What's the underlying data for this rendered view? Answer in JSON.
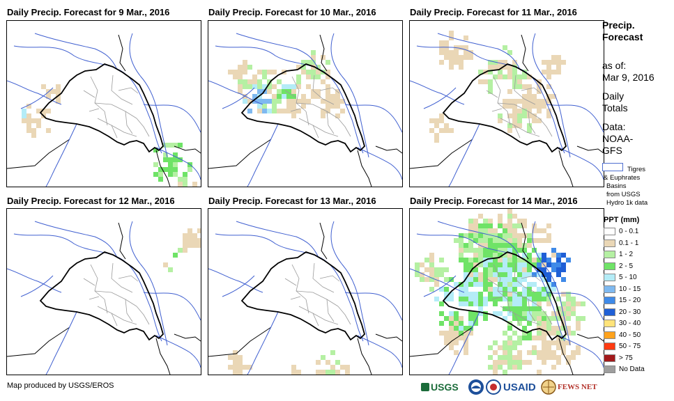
{
  "panels": [
    {
      "title": "Daily Precip. Forecast for 9 Mar., 2016"
    },
    {
      "title": "Daily Precip. Forecast for 10 Mar., 2016"
    },
    {
      "title": "Daily Precip. Forecast for 11 Mar., 2016"
    },
    {
      "title": "Daily Precip. Forecast for 12 Mar., 2016"
    },
    {
      "title": "Daily Precip. Forecast for 13 Mar., 2016"
    },
    {
      "title": "Daily Precip. Forecast for 14 Mar., 2016"
    }
  ],
  "sidebar": {
    "title_line1": "Precip.",
    "title_line2": "Forecast",
    "asof_label": "as of:",
    "asof_date": "Mar 9, 2016",
    "totals_line1": "Daily",
    "totals_line2": "Totals",
    "data_line1": "Data:",
    "data_line2": "NOAA-",
    "data_line3": "GFS",
    "basin_line1": "Tigres",
    "basin_line2": "& Euphrates",
    "basin_line3": "Basins",
    "basin_line4": "from USGS",
    "basin_line5": "Hydro 1k data"
  },
  "legend": {
    "title": "PPT (mm)",
    "items": [
      {
        "label": "0 - 0.1",
        "color": "#ffffff"
      },
      {
        "label": "0.1 - 1",
        "color": "#ead7b6"
      },
      {
        "label": "1 - 2",
        "color": "#b5f0a3"
      },
      {
        "label": "2 - 5",
        "color": "#6fe367"
      },
      {
        "label": "5 - 10",
        "color": "#b4ecf7"
      },
      {
        "label": "10 - 15",
        "color": "#7fb9f0"
      },
      {
        "label": "15 - 20",
        "color": "#3f8ae8"
      },
      {
        "label": "20 - 30",
        "color": "#1f5fd6"
      },
      {
        "label": "30 - 40",
        "color": "#ffe37a"
      },
      {
        "label": "40 - 50",
        "color": "#ffa21c"
      },
      {
        "label": "50 - 75",
        "color": "#ff3b12"
      },
      {
        "label": "> 75",
        "color": "#a2191b"
      },
      {
        "label": "No Data",
        "color": "#9e9e9e"
      }
    ]
  },
  "footer": {
    "credit": "Map produced by USGS/EROS"
  },
  "logos": {
    "usgs": "USGS",
    "usaid": "USAID",
    "fewsnet": "FEWS NET"
  },
  "colors": {
    "border": "#000000",
    "province": "#9a9a9a",
    "river": "#3f5fd0"
  }
}
